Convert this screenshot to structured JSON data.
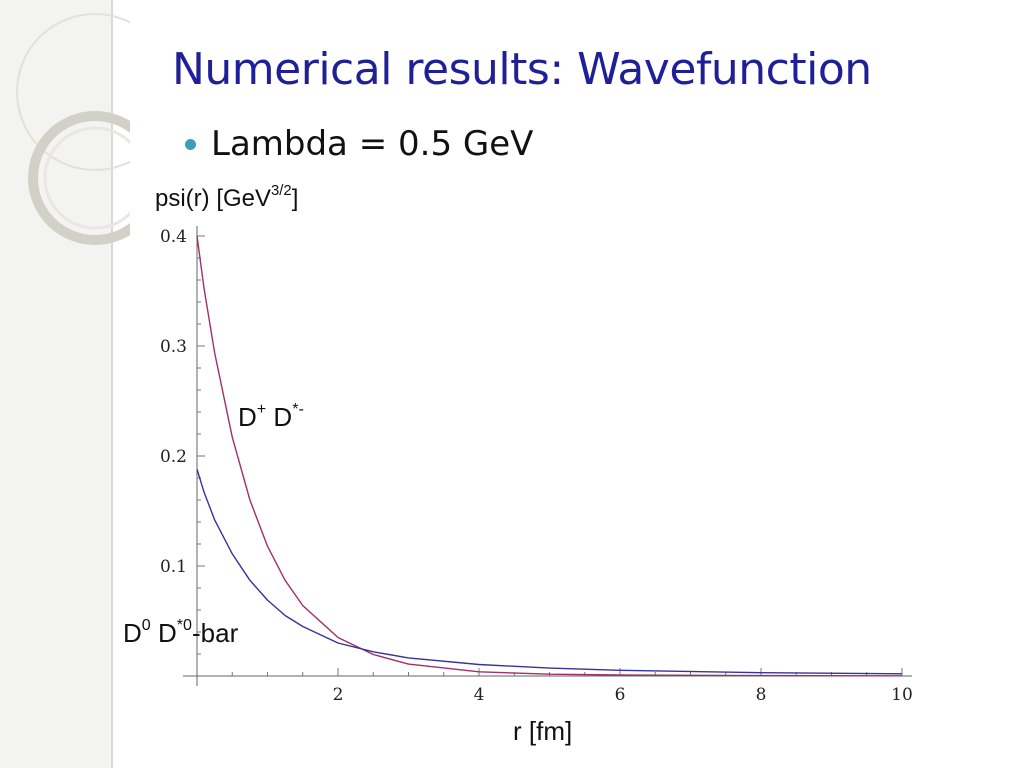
{
  "slide": {
    "title": "Numerical results: Wavefunction",
    "bullet": "Lambda = 0.5 GeV"
  },
  "colors": {
    "title": "#1f1f9a",
    "bullet_dot": "#3aa0b8",
    "series_charged": "#a0306a",
    "series_neutral": "#34349a"
  },
  "chart_data": {
    "type": "line",
    "title": "",
    "xlabel": "r [fm]",
    "ylabel": {
      "main": "psi(r) [GeV",
      "sup": "3/2",
      "tail": "]"
    },
    "xlim": [
      0,
      10
    ],
    "ylim": [
      0,
      0.4
    ],
    "x_ticks": [
      2,
      4,
      6,
      8,
      10
    ],
    "x_tick_labels": [
      "2",
      "4",
      "6",
      "8",
      "10"
    ],
    "y_ticks": [
      0.1,
      0.2,
      0.3,
      0.4
    ],
    "y_tick_labels": [
      "0.1",
      "0.2",
      "0.3",
      "0.4"
    ],
    "grid": false,
    "series": [
      {
        "key": "charged",
        "name_parts": [
          "D",
          "+",
          " D",
          "*-"
        ],
        "color": "#a0306a",
        "x": [
          0,
          0.1,
          0.25,
          0.5,
          0.75,
          1.0,
          1.25,
          1.5,
          2.0,
          2.5,
          3.0,
          4.0,
          5.0,
          6.0,
          8.0,
          10.0
        ],
        "y": [
          0.4,
          0.352,
          0.294,
          0.217,
          0.16,
          0.118,
          0.087,
          0.064,
          0.035,
          0.0195,
          0.0108,
          0.0038,
          0.0016,
          0.0009,
          0.0004,
          0.0002
        ]
      },
      {
        "key": "neutral",
        "name_parts": [
          "D",
          "0",
          " D",
          "*0",
          "-bar"
        ],
        "color": "#34349a",
        "x": [
          0,
          0.1,
          0.25,
          0.5,
          0.75,
          1.0,
          1.25,
          1.5,
          2.0,
          2.5,
          3.0,
          4.0,
          5.0,
          6.0,
          8.0,
          10.0
        ],
        "y": [
          0.188,
          0.167,
          0.142,
          0.111,
          0.087,
          0.069,
          0.055,
          0.045,
          0.03,
          0.022,
          0.0165,
          0.0105,
          0.0072,
          0.0052,
          0.003,
          0.002
        ]
      }
    ]
  }
}
